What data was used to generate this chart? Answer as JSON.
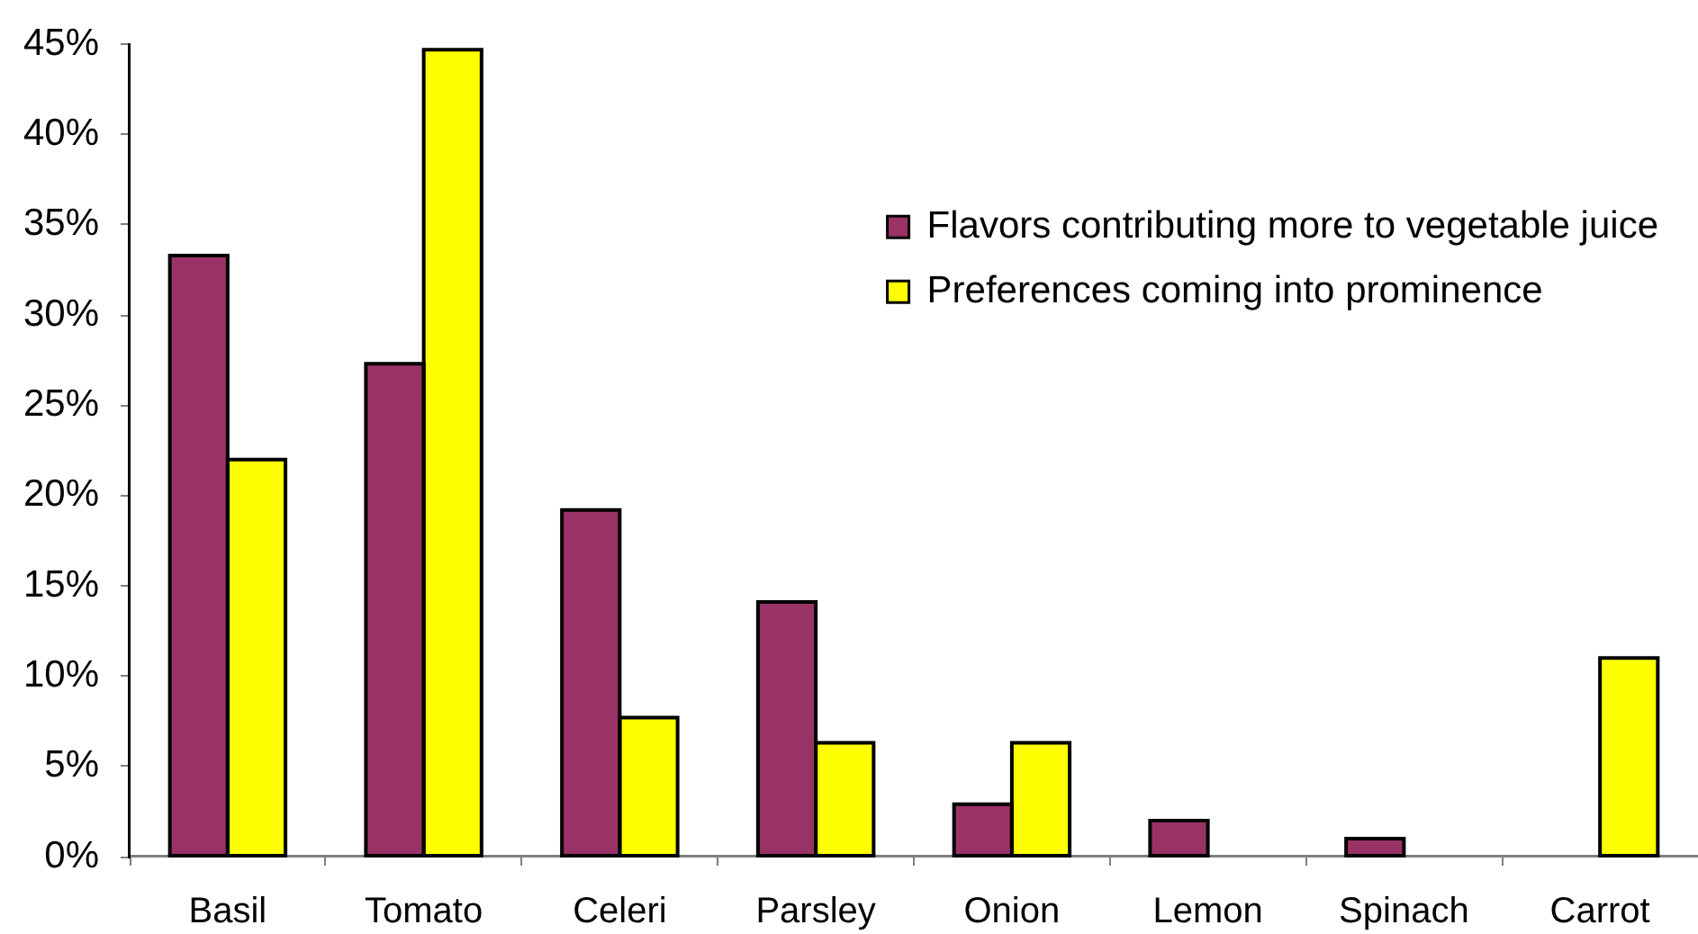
{
  "chart_data": {
    "type": "bar",
    "categories": [
      "Basil",
      "Tomato",
      "Celeri",
      "Parsley",
      "Onion",
      "Lemon",
      "Spinach",
      "Carrot"
    ],
    "series": [
      {
        "name": "Flavors contributing more to vegetable juice",
        "color": "#993366",
        "values": [
          33.3,
          27.3,
          19.2,
          14.1,
          2.9,
          2.0,
          1.0,
          null
        ]
      },
      {
        "name": "Preferences coming into prominence",
        "color": "#ffff00",
        "values": [
          22.0,
          44.7,
          7.7,
          6.3,
          6.3,
          null,
          null,
          11.0
        ]
      }
    ],
    "ylim": [
      0,
      45
    ],
    "yticks": [
      {
        "value": 0,
        "label": "0%"
      },
      {
        "value": 5,
        "label": "5%"
      },
      {
        "value": 10,
        "label": "10%"
      },
      {
        "value": 15,
        "label": "15%"
      },
      {
        "value": 20,
        "label": "20%"
      },
      {
        "value": 25,
        "label": "25%"
      },
      {
        "value": 30,
        "label": "30%"
      },
      {
        "value": 35,
        "label": "35%"
      },
      {
        "value": 40,
        "label": "40%"
      },
      {
        "value": 45,
        "label": "45%"
      }
    ],
    "grid": false,
    "legend": "top right"
  }
}
